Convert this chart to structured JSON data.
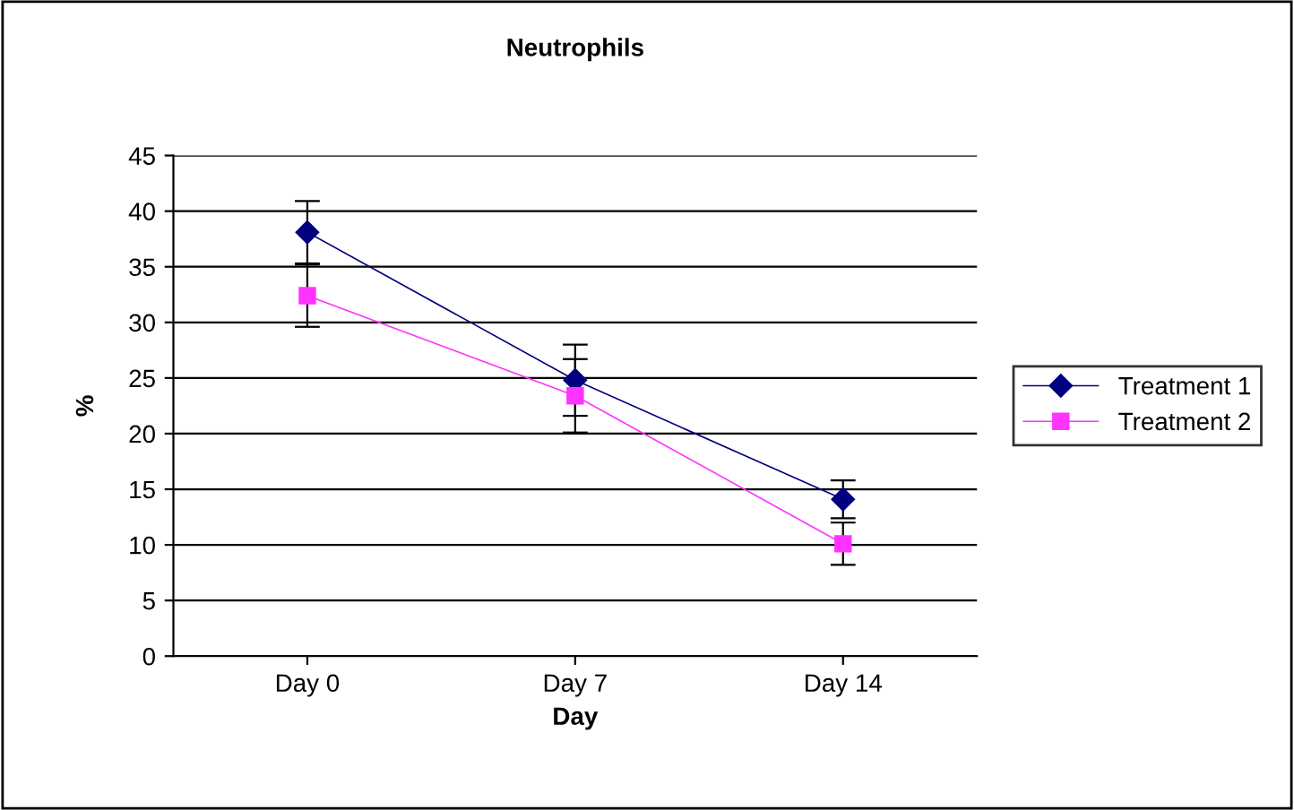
{
  "chart_data": {
    "type": "line",
    "title": "Neutrophils",
    "xlabel": "Day",
    "ylabel": "%",
    "categories": [
      "Day 0",
      "Day 7",
      "Day 14"
    ],
    "series": [
      {
        "name": "Treatment 1",
        "color": "#000080",
        "marker": "diamond",
        "values": [
          38.1,
          24.8,
          14.1
        ],
        "errors": [
          2.8,
          3.2,
          1.7
        ]
      },
      {
        "name": "Treatment 2",
        "color": "#ff33ff",
        "marker": "square",
        "values": [
          32.4,
          23.4,
          10.1
        ],
        "errors": [
          2.8,
          3.3,
          1.9
        ]
      }
    ],
    "ylim": [
      0,
      45
    ],
    "yticks": [
      0,
      5,
      10,
      15,
      20,
      25,
      30,
      35,
      40,
      45
    ],
    "grid": "y",
    "legend": "right"
  }
}
